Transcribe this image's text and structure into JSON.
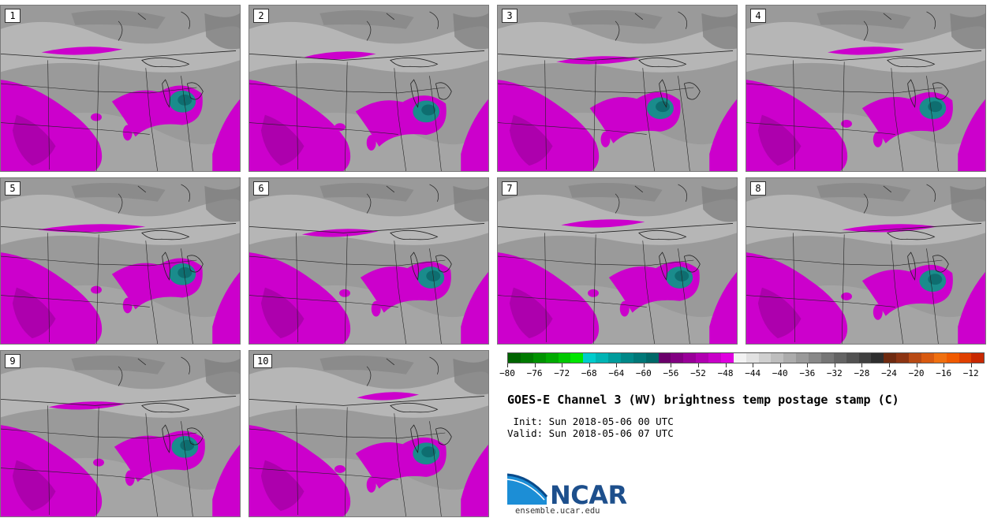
{
  "title": "GOES-E Channel 3 (WV) brightness temp postage stamp (C)",
  "init": " Init: Sun 2018-05-06 00 UTC",
  "valid": "Valid: Sun 2018-05-06 07 UTC",
  "logo": {
    "name": "NCAR",
    "url": "ensemble.ucar.edu"
  },
  "colorbar": {
    "tick_labels": [
      "−80",
      "−76",
      "−72",
      "−68",
      "−64",
      "−60",
      "−56",
      "−52",
      "−48",
      "−44",
      "−40",
      "−36",
      "−32",
      "−28",
      "−24",
      "−20",
      "−16",
      "−12"
    ],
    "tick_values": [
      -80,
      -76,
      -72,
      -68,
      -64,
      -60,
      -56,
      -52,
      -48,
      -44,
      -40,
      -36,
      -32,
      -28,
      -24,
      -20,
      -16,
      -12
    ],
    "range": [
      -80,
      -10
    ],
    "colors": [
      "#006400",
      "#007a00",
      "#009200",
      "#00aa00",
      "#00c800",
      "#00e600",
      "#00cccc",
      "#00b4b4",
      "#009c9c",
      "#008888",
      "#007878",
      "#006868",
      "#6a006a",
      "#820082",
      "#990099",
      "#b000b0",
      "#c800c8",
      "#e000e0",
      "#f2f2f2",
      "#e2e2e2",
      "#d0d0d0",
      "#bebebe",
      "#acacac",
      "#9a9a9a",
      "#888888",
      "#767676",
      "#646464",
      "#525252",
      "#404040",
      "#2e2e2e",
      "#6e2a10",
      "#8c3412",
      "#b84a14",
      "#d85a10",
      "#f07010",
      "#f05a00",
      "#e04000",
      "#c82800"
    ]
  },
  "panels": [
    {
      "label": "1"
    },
    {
      "label": "2"
    },
    {
      "label": "3"
    },
    {
      "label": "4"
    },
    {
      "label": "5"
    },
    {
      "label": "6"
    },
    {
      "label": "7"
    },
    {
      "label": "8"
    },
    {
      "label": "9"
    },
    {
      "label": "10"
    }
  ],
  "map_colors": {
    "cold_cloud": "#cc00cc",
    "deep_core": "#1a8c8c",
    "dry_background": "#9a9a9a",
    "moist_background": "#bdbdbd",
    "border_line": "#222222"
  }
}
